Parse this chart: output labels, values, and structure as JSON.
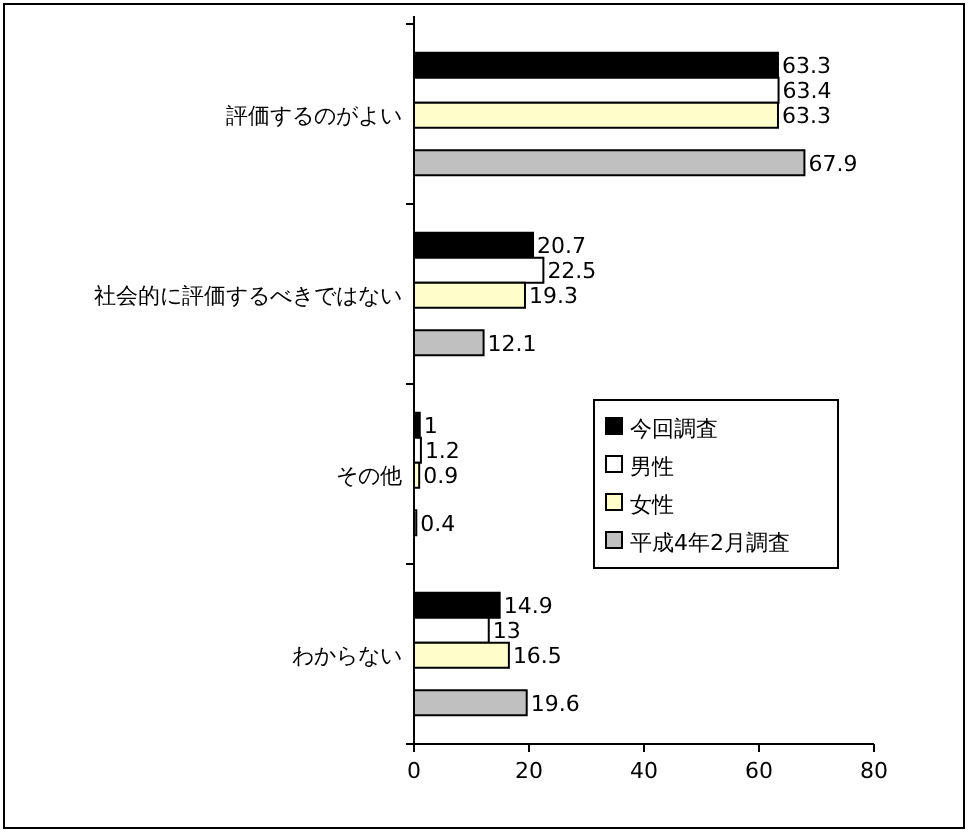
{
  "chart_data": {
    "type": "bar",
    "orientation": "horizontal",
    "categories": [
      "評価するのがよい",
      "社会的に評価するべきではない",
      "その他",
      "わからない"
    ],
    "series": [
      {
        "name": "今回調査",
        "color": "#000000",
        "values": [
          63.3,
          20.7,
          1,
          14.9
        ]
      },
      {
        "name": "男性",
        "color": "#ffffff",
        "values": [
          63.4,
          22.5,
          1.2,
          13
        ]
      },
      {
        "name": "女性",
        "color": "#ffffcc",
        "values": [
          63.3,
          19.3,
          0.9,
          16.5
        ]
      },
      {
        "name": "平成4年2月調査",
        "color": "#c0c0c0",
        "values": [
          67.9,
          12.1,
          0.4,
          19.6
        ]
      }
    ],
    "xlim": [
      0,
      80
    ],
    "xticks": [
      0,
      20,
      40,
      60,
      80
    ],
    "data_labels": true,
    "legend": "right"
  }
}
